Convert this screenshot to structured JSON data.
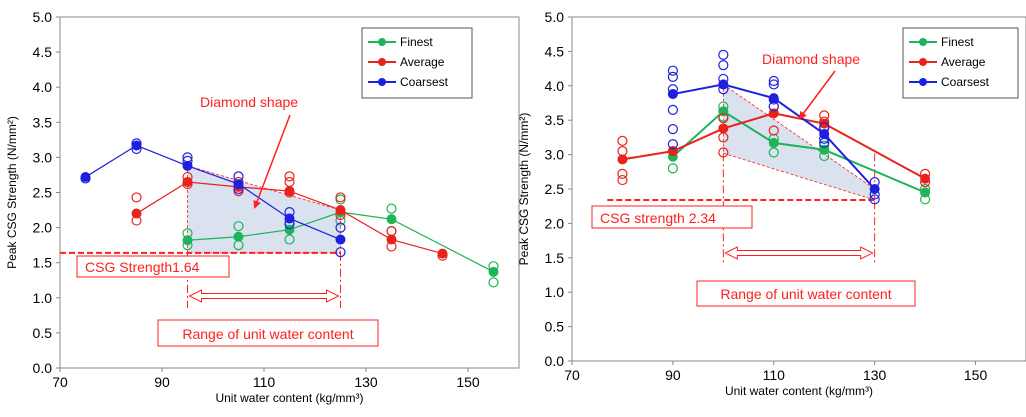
{
  "colors": {
    "finest": "#1fb45a",
    "average": "#e8231c",
    "coarsest": "#1f1fe0",
    "annotation": "#ff2020",
    "region_fill": "#cdd7ea"
  },
  "chart_data": [
    {
      "type": "scatter",
      "xlabel": "Unit water content (kg/mm³)",
      "ylabel": "Peak  CSG Strength (N/mm²)",
      "xlim": [
        70,
        160
      ],
      "ylim": [
        0,
        5
      ],
      "xticks": [
        "70",
        "90",
        "110",
        "130",
        "150"
      ],
      "yticks": [
        "0.0",
        "0.5",
        "1.0",
        "1.5",
        "2.0",
        "2.5",
        "3.0",
        "3.5",
        "4.0",
        "4.5",
        "5.0"
      ],
      "legend_position": "top-right",
      "series": [
        {
          "name": "Finest",
          "color_key": "finest",
          "mean": [
            [
              95,
              1.82
            ],
            [
              105,
              1.87
            ],
            [
              115,
              1.97
            ],
            [
              125,
              2.22
            ],
            [
              135,
              2.12
            ],
            [
              155,
              1.37
            ]
          ],
          "samples": [
            [
              95,
              1.92
            ],
            [
              95,
              1.75
            ],
            [
              105,
              2.02
            ],
            [
              105,
              1.75
            ],
            [
              115,
              2.08
            ],
            [
              115,
              1.83
            ],
            [
              125,
              2.4
            ],
            [
              125,
              2.1
            ],
            [
              135,
              2.27
            ],
            [
              135,
              1.95
            ],
            [
              155,
              1.45
            ],
            [
              155,
              1.22
            ]
          ]
        },
        {
          "name": "Average",
          "color_key": "average",
          "mean": [
            [
              85,
              2.2
            ],
            [
              95,
              2.65
            ],
            [
              105,
              2.58
            ],
            [
              115,
              2.52
            ],
            [
              125,
              2.25
            ],
            [
              135,
              1.83
            ],
            [
              145,
              1.63
            ]
          ],
          "samples": [
            [
              85,
              2.43
            ],
            [
              85,
              2.1
            ],
            [
              95,
              2.72
            ],
            [
              95,
              2.62
            ],
            [
              105,
              2.65
            ],
            [
              105,
              2.52
            ],
            [
              115,
              2.73
            ],
            [
              115,
              2.65
            ],
            [
              115,
              2.5
            ],
            [
              125,
              2.43
            ],
            [
              125,
              2.18
            ],
            [
              135,
              1.95
            ],
            [
              135,
              1.73
            ],
            [
              145,
              1.6
            ]
          ]
        },
        {
          "name": "Coarsest",
          "color_key": "coarsest",
          "mean": [
            [
              75,
              2.72
            ],
            [
              85,
              3.17
            ],
            [
              95,
              2.88
            ],
            [
              105,
              2.62
            ],
            [
              115,
              2.13
            ],
            [
              125,
              1.83
            ]
          ],
          "samples": [
            [
              75,
              2.7
            ],
            [
              85,
              3.2
            ],
            [
              85,
              3.12
            ],
            [
              95,
              3.0
            ],
            [
              95,
              2.95
            ],
            [
              105,
              2.73
            ],
            [
              105,
              2.55
            ],
            [
              115,
              2.22
            ],
            [
              115,
              2.05
            ],
            [
              125,
              2.0
            ],
            [
              125,
              1.65
            ]
          ]
        }
      ],
      "diamond_region": [
        [
          95,
          2.88
        ],
        [
          125,
          2.25
        ],
        [
          125,
          1.64
        ],
        [
          95,
          1.64
        ]
      ],
      "threshold": {
        "value": 1.64,
        "x_range": [
          70,
          125
        ],
        "label": "CSG Strength1.64"
      },
      "water_range": {
        "x_range": [
          95,
          125
        ],
        "label": "Range of unit water content"
      },
      "annotation": {
        "text": "Diamond shape"
      }
    },
    {
      "type": "scatter",
      "xlabel": "Unit water content (kg/mm³)",
      "ylabel": "Peak CSG Strength (N/mm²)",
      "xlim": [
        70,
        160
      ],
      "ylim": [
        0,
        5
      ],
      "xticks": [
        "70",
        "90",
        "110",
        "130",
        "150"
      ],
      "yticks": [
        "0.0",
        "0.5",
        "1.0",
        "1.5",
        "2.0",
        "2.5",
        "3.0",
        "3.5",
        "4.0",
        "4.5",
        "5.0"
      ],
      "legend_position": "top-right",
      "series": [
        {
          "name": "Finest",
          "color_key": "finest",
          "mean": [
            [
              90,
              2.97
            ],
            [
              100,
              3.63
            ],
            [
              110,
              3.17
            ],
            [
              120,
              3.07
            ],
            [
              140,
              2.45
            ]
          ],
          "samples": [
            [
              90,
              3.05
            ],
            [
              90,
              2.8
            ],
            [
              100,
              3.7
            ],
            [
              100,
              3.55
            ],
            [
              110,
              3.23
            ],
            [
              110,
              3.03
            ],
            [
              120,
              3.13
            ],
            [
              120,
              2.98
            ],
            [
              140,
              2.5
            ],
            [
              140,
              2.35
            ]
          ]
        },
        {
          "name": "Average",
          "color_key": "average",
          "mean": [
            [
              80,
              2.93
            ],
            [
              90,
              3.05
            ],
            [
              100,
              3.38
            ],
            [
              110,
              3.6
            ],
            [
              120,
              3.45
            ],
            [
              140,
              2.65
            ]
          ],
          "samples": [
            [
              80,
              3.2
            ],
            [
              80,
              3.05
            ],
            [
              80,
              2.72
            ],
            [
              80,
              2.63
            ],
            [
              100,
              3.53
            ],
            [
              100,
              3.25
            ],
            [
              100,
              3.03
            ],
            [
              110,
              3.7
            ],
            [
              110,
              3.35
            ],
            [
              120,
              3.57
            ],
            [
              120,
              3.48
            ],
            [
              120,
              3.38
            ],
            [
              140,
              2.72
            ],
            [
              140,
              2.6
            ]
          ]
        },
        {
          "name": "Coarsest",
          "color_key": "coarsest",
          "mean": [
            [
              90,
              3.88
            ],
            [
              100,
              4.02
            ],
            [
              110,
              3.82
            ],
            [
              120,
              3.3
            ],
            [
              130,
              2.5
            ]
          ],
          "samples": [
            [
              90,
              4.22
            ],
            [
              90,
              4.13
            ],
            [
              90,
              3.95
            ],
            [
              90,
              3.65
            ],
            [
              90,
              3.37
            ],
            [
              90,
              3.15
            ],
            [
              100,
              4.45
            ],
            [
              100,
              4.3
            ],
            [
              100,
              4.1
            ],
            [
              100,
              3.95
            ],
            [
              110,
              4.07
            ],
            [
              110,
              4.02
            ],
            [
              110,
              3.8
            ],
            [
              110,
              3.7
            ],
            [
              120,
              3.4
            ],
            [
              120,
              3.23
            ],
            [
              120,
              3.17
            ],
            [
              130,
              2.6
            ],
            [
              130,
              2.42
            ],
            [
              130,
              2.35
            ]
          ]
        }
      ],
      "diamond_region": [
        [
          100,
          4.02
        ],
        [
          130,
          2.5
        ],
        [
          130,
          2.34
        ],
        [
          100,
          3.02
        ]
      ],
      "threshold": {
        "value": 2.34,
        "x_range": [
          77,
          130
        ],
        "label": "CSG strength  2.34"
      },
      "water_range": {
        "x_range": [
          100,
          130
        ],
        "label": "Range of unit water content"
      },
      "annotation": {
        "text": "Diamond shape"
      }
    }
  ]
}
